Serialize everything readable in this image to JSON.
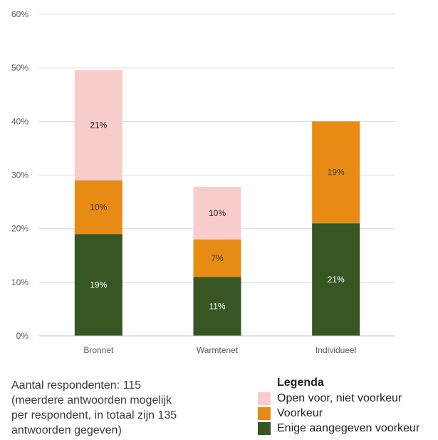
{
  "chart_data": {
    "type": "bar",
    "stacked": true,
    "categories": [
      "Bronnet",
      "Warmtenet",
      "Individueel"
    ],
    "series": [
      {
        "name": "Enige aangegeven voorkeur",
        "values": [
          19,
          11,
          21
        ],
        "labels": [
          "19%",
          "11%",
          "21%"
        ],
        "color": "#375623",
        "label_color": "#ffffff"
      },
      {
        "name": "Voorkeur",
        "values": [
          10,
          7,
          19
        ],
        "labels": [
          "10%",
          "7%",
          "19%"
        ],
        "color": "#e88b14",
        "label_color": "#3a3a3a"
      },
      {
        "name": "Open voor, niet voorkeur",
        "values": [
          21,
          10,
          0
        ],
        "labels": [
          "21%",
          "10%",
          ""
        ],
        "color": "#f9cccc",
        "label_color": "#222222"
      }
    ],
    "stack_totals": [
      49.6,
      27.8,
      40
    ],
    "ylim": [
      0,
      60
    ],
    "yticks": [
      "0%",
      "10%",
      "20%",
      "30%",
      "40%",
      "50%",
      "60%"
    ],
    "grid": true
  },
  "legend": {
    "title": "Legenda",
    "items": [
      {
        "label": "Open voor, niet voorkeur",
        "color": "#f9cccc"
      },
      {
        "label": "Voorkeur",
        "color": "#e88b14"
      },
      {
        "label": "Enige aangegeven voorkeur",
        "color": "#375623"
      }
    ]
  },
  "note": {
    "lines": [
      "Aantal respondenten: 115",
      "(meerdere antwoorden mogelijk",
      "per respondent, in totaal zijn 135",
      "antwoorden gegeven)"
    ]
  }
}
